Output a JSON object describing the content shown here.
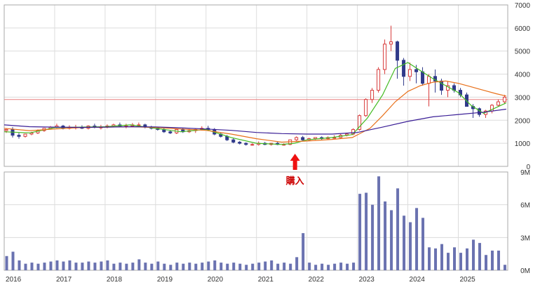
{
  "colors": {
    "background": "#ffffff",
    "grid": "#dcdcdc",
    "border": "#aaaaaa",
    "up_candle": "#d83a3a",
    "down_candle": "#303a8a",
    "ma_short": "#44bb22",
    "ma_mid": "#e8701a",
    "ma_long": "#3a1e96",
    "volume_bar": "#6a72b0",
    "reference_line": "#e88080",
    "buy_marker": "#ee1111"
  },
  "chart_data": [
    {
      "type": "candlestick",
      "title": "",
      "ylim": [
        0,
        7000
      ],
      "y_ticks": [
        "0",
        "1000",
        "2000",
        "3000",
        "4000",
        "5000",
        "6000",
        "7000"
      ],
      "x_ticks": [
        "2016",
        "2017",
        "2018",
        "2019",
        "2020",
        "2021",
        "2022",
        "2023",
        "2024",
        "2025"
      ],
      "grid": true,
      "reference_line": 2900,
      "annotation": {
        "label": "購入",
        "x": 2021.75,
        "marker": "red-up-arrow"
      },
      "x": [
        2016.0,
        2016.125,
        2016.25,
        2016.375,
        2016.5,
        2016.625,
        2016.75,
        2016.875,
        2017.0,
        2017.125,
        2017.25,
        2017.375,
        2017.5,
        2017.625,
        2017.75,
        2017.875,
        2018.0,
        2018.125,
        2018.25,
        2018.375,
        2018.5,
        2018.625,
        2018.75,
        2018.875,
        2019.0,
        2019.125,
        2019.25,
        2019.375,
        2019.5,
        2019.625,
        2019.75,
        2019.875,
        2020.0,
        2020.125,
        2020.25,
        2020.375,
        2020.5,
        2020.625,
        2020.75,
        2020.875,
        2021.0,
        2021.125,
        2021.25,
        2021.375,
        2021.5,
        2021.625,
        2021.75,
        2021.875,
        2022.0,
        2022.125,
        2022.25,
        2022.375,
        2022.5,
        2022.625,
        2022.75,
        2022.875,
        2023.0,
        2023.125,
        2023.25,
        2023.375,
        2023.5,
        2023.625,
        2023.75,
        2023.875,
        2024.0,
        2024.125,
        2024.25,
        2024.375,
        2024.5,
        2024.625,
        2024.75,
        2024.875,
        2025.0,
        2025.125,
        2025.25,
        2025.375,
        2025.5,
        2025.625,
        2025.75,
        2025.875
      ],
      "open": [
        1550,
        1600,
        1350,
        1300,
        1400,
        1450,
        1550,
        1650,
        1700,
        1750,
        1650,
        1700,
        1700,
        1650,
        1750,
        1700,
        1700,
        1750,
        1800,
        1750,
        1750,
        1800,
        1800,
        1700,
        1650,
        1600,
        1500,
        1450,
        1600,
        1500,
        1550,
        1600,
        1650,
        1600,
        1400,
        1300,
        1150,
        1050,
        1000,
        950,
        950,
        1000,
        950,
        1000,
        950,
        950,
        1150,
        1250,
        1150,
        1200,
        1250,
        1200,
        1250,
        1250,
        1350,
        1400,
        1600,
        2200,
        2900,
        3300,
        4200,
        5300,
        5400,
        4600,
        3900,
        4200,
        4100,
        3600,
        3900,
        3700,
        3300,
        3500,
        3300,
        3100,
        2600,
        2500,
        2250,
        2400,
        2650,
        2800
      ],
      "high": [
        1650,
        1700,
        1450,
        1400,
        1500,
        1600,
        1650,
        1750,
        1850,
        1800,
        1780,
        1800,
        1780,
        1780,
        1850,
        1800,
        1820,
        1850,
        1900,
        1850,
        1880,
        1900,
        1850,
        1760,
        1720,
        1660,
        1560,
        1620,
        1660,
        1620,
        1640,
        1740,
        1760,
        1660,
        1460,
        1360,
        1220,
        1100,
        1040,
        1000,
        1080,
        1060,
        1020,
        1060,
        1000,
        1100,
        1300,
        1320,
        1240,
        1260,
        1300,
        1300,
        1350,
        1400,
        1460,
        1650,
        2250,
        2950,
        3400,
        4300,
        5500,
        6100,
        5450,
        4700,
        4500,
        4400,
        4300,
        4000,
        4200,
        3800,
        3700,
        3600,
        3400,
        3200,
        2700,
        2550,
        2450,
        2700,
        2900,
        3100
      ],
      "low": [
        1450,
        1250,
        1200,
        1250,
        1350,
        1400,
        1500,
        1600,
        1650,
        1600,
        1600,
        1600,
        1620,
        1600,
        1650,
        1600,
        1650,
        1700,
        1700,
        1650,
        1700,
        1700,
        1650,
        1600,
        1550,
        1450,
        1400,
        1400,
        1450,
        1450,
        1450,
        1550,
        1550,
        1350,
        1250,
        1100,
        1000,
        950,
        900,
        900,
        900,
        920,
        900,
        920,
        900,
        920,
        1100,
        1100,
        1100,
        1150,
        1150,
        1150,
        1200,
        1200,
        1300,
        1350,
        1550,
        2150,
        2750,
        3200,
        4000,
        5000,
        3800,
        3500,
        3700,
        3600,
        3500,
        2600,
        3200,
        3100,
        3000,
        3200,
        3000,
        2600,
        2100,
        2150,
        2100,
        2300,
        2600,
        2700
      ],
      "close": [
        1600,
        1350,
        1300,
        1400,
        1450,
        1550,
        1650,
        1700,
        1750,
        1650,
        1700,
        1700,
        1650,
        1750,
        1700,
        1700,
        1750,
        1800,
        1750,
        1750,
        1800,
        1800,
        1700,
        1650,
        1600,
        1500,
        1450,
        1600,
        1500,
        1550,
        1600,
        1650,
        1600,
        1400,
        1300,
        1150,
        1050,
        1000,
        950,
        950,
        1000,
        950,
        1000,
        950,
        950,
        1150,
        1250,
        1150,
        1200,
        1250,
        1200,
        1250,
        1250,
        1350,
        1400,
        1600,
        2200,
        2900,
        3300,
        4200,
        5300,
        5400,
        4600,
        3900,
        4200,
        4100,
        3600,
        3900,
        3700,
        3300,
        3500,
        3300,
        3100,
        2600,
        2500,
        2250,
        2400,
        2650,
        2800,
        3000
      ],
      "series": [
        {
          "name": "",
          "color": "#44bb22",
          "x": [
            2016.0,
            2016.5,
            2017.0,
            2017.5,
            2018.0,
            2018.5,
            2019.0,
            2019.5,
            2020.0,
            2020.5,
            2021.0,
            2021.5,
            2021.75,
            2022.0,
            2022.5,
            2022.9,
            2023.2,
            2023.5,
            2023.75,
            2024.0,
            2024.25,
            2024.5,
            2024.75,
            2025.0,
            2025.25,
            2025.5,
            2025.75,
            2025.95
          ],
          "y": [
            1500,
            1450,
            1680,
            1700,
            1720,
            1800,
            1650,
            1500,
            1600,
            1250,
            1000,
            950,
            1000,
            1150,
            1250,
            1380,
            2100,
            3100,
            4250,
            4500,
            4150,
            3800,
            3500,
            3200,
            2650,
            2300,
            2550,
            2750
          ]
        },
        {
          "name": "",
          "color": "#e8701a",
          "x": [
            2016.0,
            2016.5,
            2017.0,
            2017.5,
            2018.0,
            2018.5,
            2019.0,
            2019.5,
            2020.0,
            2020.5,
            2021.0,
            2021.5,
            2022.0,
            2022.5,
            2022.9,
            2023.25,
            2023.5,
            2023.75,
            2024.0,
            2024.25,
            2024.5,
            2024.75,
            2025.0,
            2025.25,
            2025.5,
            2025.75,
            2025.95
          ],
          "y": [
            1650,
            1550,
            1620,
            1680,
            1700,
            1720,
            1690,
            1620,
            1560,
            1400,
            1200,
            1050,
            1100,
            1170,
            1250,
            1650,
            2200,
            2800,
            3250,
            3500,
            3650,
            3700,
            3600,
            3450,
            3300,
            3150,
            3050
          ]
        },
        {
          "name": "",
          "color": "#3a1e96",
          "x": [
            2016.0,
            2016.5,
            2017.0,
            2017.5,
            2018.0,
            2018.5,
            2019.0,
            2019.5,
            2020.0,
            2020.5,
            2021.0,
            2021.5,
            2022.0,
            2022.5,
            2023.0,
            2023.5,
            2024.0,
            2024.5,
            2025.0,
            2025.5,
            2025.95
          ],
          "y": [
            1800,
            1720,
            1700,
            1690,
            1700,
            1720,
            1710,
            1670,
            1620,
            1560,
            1470,
            1420,
            1400,
            1400,
            1470,
            1700,
            1950,
            2150,
            2250,
            2350,
            2480
          ]
        }
      ]
    },
    {
      "type": "bar",
      "title": "",
      "ylim": [
        0,
        9
      ],
      "y_ticks": [
        "0M",
        "3M",
        "6M",
        "9M"
      ],
      "x_ticks": [
        "2016",
        "2017",
        "2018",
        "2019",
        "2020",
        "2021",
        "2022",
        "2023",
        "2024",
        "2025"
      ],
      "grid": true,
      "x": [
        2016.0,
        2016.125,
        2016.25,
        2016.375,
        2016.5,
        2016.625,
        2016.75,
        2016.875,
        2017.0,
        2017.125,
        2017.25,
        2017.375,
        2017.5,
        2017.625,
        2017.75,
        2017.875,
        2018.0,
        2018.125,
        2018.25,
        2018.375,
        2018.5,
        2018.625,
        2018.75,
        2018.875,
        2019.0,
        2019.125,
        2019.25,
        2019.375,
        2019.5,
        2019.625,
        2019.75,
        2019.875,
        2020.0,
        2020.125,
        2020.25,
        2020.375,
        2020.5,
        2020.625,
        2020.75,
        2020.875,
        2021.0,
        2021.125,
        2021.25,
        2021.375,
        2021.5,
        2021.625,
        2021.75,
        2021.875,
        2022.0,
        2022.125,
        2022.25,
        2022.375,
        2022.5,
        2022.625,
        2022.75,
        2022.875,
        2023.0,
        2023.125,
        2023.25,
        2023.375,
        2023.5,
        2023.625,
        2023.75,
        2023.875,
        2024.0,
        2024.125,
        2024.25,
        2024.375,
        2024.5,
        2024.625,
        2024.75,
        2024.875,
        2025.0,
        2025.125,
        2025.25,
        2025.375,
        2025.5,
        2025.625,
        2025.75,
        2025.875
      ],
      "values": [
        1.3,
        1.7,
        0.9,
        0.6,
        0.7,
        0.6,
        0.7,
        0.8,
        0.9,
        0.8,
        0.9,
        0.7,
        0.7,
        0.8,
        0.7,
        0.8,
        0.9,
        0.6,
        0.7,
        0.6,
        0.7,
        1.0,
        0.7,
        0.6,
        0.8,
        0.6,
        0.5,
        0.7,
        0.6,
        0.7,
        0.6,
        0.7,
        0.8,
        0.9,
        0.7,
        0.6,
        0.7,
        0.6,
        0.5,
        0.6,
        0.7,
        0.8,
        0.9,
        0.6,
        0.7,
        0.6,
        1.2,
        3.4,
        0.7,
        0.5,
        0.6,
        0.5,
        0.6,
        0.7,
        0.6,
        0.7,
        7.0,
        7.1,
        6.0,
        8.6,
        6.3,
        5.5,
        7.5,
        5.0,
        4.4,
        5.7,
        4.8,
        2.1,
        2.0,
        2.4,
        1.6,
        2.1,
        1.6,
        2.0,
        2.8,
        2.5,
        1.4,
        1.8,
        1.8,
        0.5
      ]
    }
  ]
}
